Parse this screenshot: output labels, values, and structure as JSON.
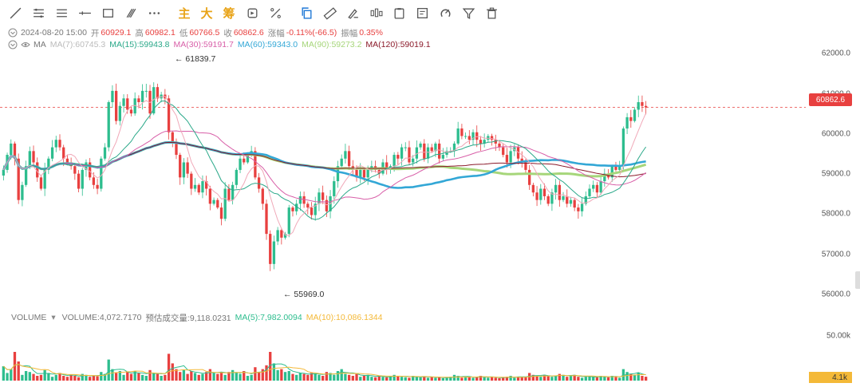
{
  "toolbar": {
    "tools": [
      {
        "name": "trend-line-icon"
      },
      {
        "name": "horizontal-ray-icon"
      },
      {
        "name": "parallel-lines-icon"
      },
      {
        "name": "horizontal-line-icon"
      },
      {
        "name": "rectangle-icon"
      },
      {
        "name": "fib-icon"
      },
      {
        "name": "more-icon"
      }
    ],
    "text_buttons": [
      "主",
      "大",
      "筹"
    ],
    "tools2": [
      {
        "name": "replay-icon"
      },
      {
        "name": "measure-icon"
      },
      {
        "name": "copy-icon"
      },
      {
        "name": "ruler-icon"
      },
      {
        "name": "brush-icon"
      },
      {
        "name": "candles-icon"
      },
      {
        "name": "clipboard-icon"
      },
      {
        "name": "note-icon"
      },
      {
        "name": "magnet-icon"
      },
      {
        "name": "filter-icon"
      },
      {
        "name": "trash-icon"
      }
    ]
  },
  "info": {
    "datetime": "2024-08-20 15:00",
    "open_label": "开",
    "open": "60929.1",
    "high_label": "高",
    "high": "60982.1",
    "low_label": "低",
    "low": "60766.5",
    "close_label": "收",
    "close": "60862.6",
    "change_label": "涨幅",
    "change": "-0.11%(-66.5)",
    "amp_label": "振幅",
    "amp": "0.35%"
  },
  "ma": {
    "label": "MA",
    "ma7": "MA(7):60745.3",
    "ma15": "MA(15):59943.8",
    "ma30": "MA(30):59191.7",
    "ma60": "MA(60):59343.0",
    "ma90": "MA(90):59273.2",
    "ma120": "MA(120):59019.1"
  },
  "volume": {
    "label": "VOLUME",
    "vol": "VOLUME:4,072.7170",
    "est": "预估成交量:9,118.0231",
    "ma5": "MA(5):7,982.0094",
    "ma10": "MA(10):10,086.1344"
  },
  "axis": {
    "price_ticks": [
      "62000.0",
      "61000.0",
      "60000.0",
      "59000.0",
      "58000.0",
      "57000.0",
      "56000.0"
    ],
    "current_price": "60862.6",
    "vol_tick": "50.00k",
    "vol_current": "4.1k"
  },
  "annotations": {
    "high": "61839.7",
    "low": "55969.0"
  },
  "colors": {
    "up": "#2dbd8e",
    "down": "#e8403f",
    "ma7": "#f0a8b8",
    "ma15": "#2aa889",
    "ma30": "#d85fa8",
    "ma60": "#33a7d6",
    "ma90": "#a6d67a",
    "ma120": "#8b1a2a",
    "vol_ma5": "#2dbd8e",
    "vol_ma10": "#f4b938"
  },
  "chart_data": {
    "type": "candlestick",
    "ylim": [
      55700,
      62400
    ],
    "closes": [
      59200,
      59600,
      59900,
      59500,
      58400,
      58800,
      59300,
      59700,
      59400,
      59000,
      58700,
      59200,
      59500,
      59800,
      60000,
      59800,
      59500,
      59400,
      59300,
      59100,
      58700,
      59200,
      59400,
      59000,
      58800,
      58700,
      59500,
      59800,
      61000,
      61300,
      60500,
      60900,
      61100,
      60800,
      60700,
      61100,
      61000,
      61300,
      61300,
      60700,
      61400,
      61100,
      61200,
      61100,
      60200,
      59900,
      59600,
      59000,
      59400,
      59100,
      58700,
      58800,
      58600,
      58900,
      58700,
      58300,
      58400,
      58200,
      57900,
      58700,
      58400,
      58800,
      59200,
      59500,
      59400,
      59600,
      59700,
      59000,
      58700,
      58300,
      57500,
      56700,
      57300,
      57600,
      57400,
      57500,
      58200,
      58100,
      58300,
      58500,
      58300,
      58200,
      58000,
      58300,
      58600,
      58400,
      58100,
      58500,
      58900,
      59300,
      59500,
      59700,
      59300,
      59200,
      59000,
      59200,
      59000,
      59200,
      59300,
      59200,
      59100,
      59400,
      59200,
      59300,
      59600,
      59500,
      59800,
      59800,
      59400,
      59500,
      59800,
      59900,
      59500,
      59800,
      59700,
      59900,
      59500,
      59600,
      59700,
      59700,
      59900,
      60300,
      60100,
      60100,
      60000,
      60200,
      60000,
      59900,
      60000,
      60100,
      60000,
      59900,
      59800,
      59600,
      59400,
      59700,
      59800,
      59500,
      59400,
      59200,
      58800,
      58600,
      58400,
      58700,
      58500,
      58300,
      58600,
      58800,
      58400,
      58500,
      58300,
      58400,
      58200,
      58100,
      58300,
      58500,
      58700,
      58800,
      58600,
      58900,
      59100,
      59000,
      59300,
      59200,
      59300,
      60300,
      60600,
      60500,
      60800,
      61000,
      60900,
      60862
    ],
    "vol_ylim": [
      0,
      60000
    ],
    "volumes": [
      15000,
      8000,
      12000,
      30000,
      20000,
      6000,
      10000,
      9000,
      7000,
      5000,
      6000,
      11000,
      8000,
      4000,
      6000,
      8000,
      5000,
      4000,
      6000,
      5000,
      3500,
      7000,
      6000,
      4000,
      5000,
      4500,
      9000,
      7000,
      22000,
      12000,
      8000,
      10000,
      6000,
      9000,
      7000,
      10000,
      8000,
      6000,
      5000,
      11000,
      8000,
      7000,
      5000,
      6000,
      28000,
      18000,
      12000,
      9000,
      11000,
      7000,
      10000,
      8000,
      6000,
      7000,
      9000,
      12000,
      8000,
      7000,
      9000,
      6000,
      9000,
      11000,
      8000,
      7000,
      10000,
      5000,
      6000,
      14000,
      9000,
      12000,
      16000,
      30000,
      18000,
      11000,
      12000,
      9000,
      10000,
      7000,
      6000,
      8000,
      7000,
      6000,
      8000,
      7000,
      6000,
      5000,
      9000,
      8000,
      6000,
      10000,
      12000,
      7000,
      6000,
      5000,
      7000,
      4000,
      5000,
      6000,
      4000,
      3500,
      5000,
      4000,
      3500,
      4500,
      6000,
      5000,
      4000,
      3500,
      3000,
      5000,
      4000,
      3500,
      4500,
      3000,
      4000,
      3000,
      3500,
      2500,
      3000,
      4000,
      6000,
      5000,
      3000,
      4000,
      3500,
      3000,
      4000,
      5000,
      3500,
      3000,
      4000,
      3000,
      2500,
      3500,
      4000,
      5000,
      3000,
      4000,
      3500,
      4000,
      8000,
      6000,
      5000,
      4000,
      6000,
      5000,
      4000,
      5000,
      7000,
      6000,
      4000,
      5000,
      6000,
      4000,
      3000,
      4000,
      4500,
      4000,
      3500,
      5000,
      4000,
      3500,
      5000,
      4000,
      3000,
      12000,
      9000,
      7000,
      6000,
      8000,
      5000,
      4072
    ]
  }
}
